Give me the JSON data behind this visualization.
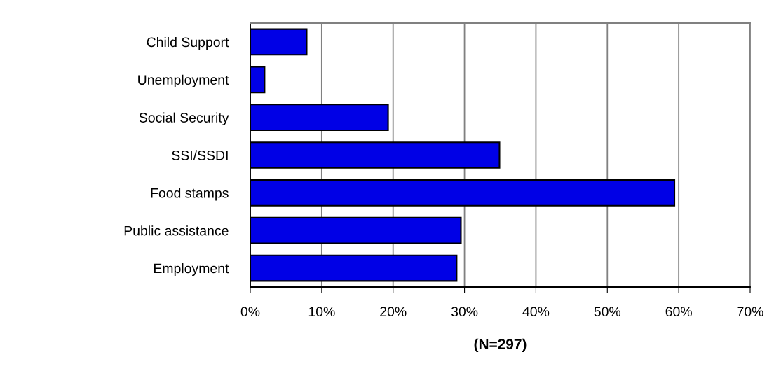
{
  "chart_data": {
    "type": "bar",
    "orientation": "horizontal",
    "xlabel": "(N=297)",
    "categories": [
      "Child Support",
      "Unemployment",
      "Social Security",
      "SSI/SSDI",
      "Food stamps",
      "Public assistance",
      "Employment"
    ],
    "values": [
      7.9,
      2.0,
      19.3,
      34.9,
      59.4,
      29.5,
      28.9
    ],
    "color": "#0000e6",
    "xlim": [
      0,
      70
    ],
    "xticks": [
      {
        "value": 0,
        "label": "0%"
      },
      {
        "value": 10,
        "label": "10%"
      },
      {
        "value": 20,
        "label": "20%"
      },
      {
        "value": 30,
        "label": "30%"
      },
      {
        "value": 40,
        "label": "40%"
      },
      {
        "value": 50,
        "label": "50%"
      },
      {
        "value": 60,
        "label": "60%"
      },
      {
        "value": 70,
        "label": "70%"
      }
    ],
    "grid": "x",
    "legend": false
  }
}
